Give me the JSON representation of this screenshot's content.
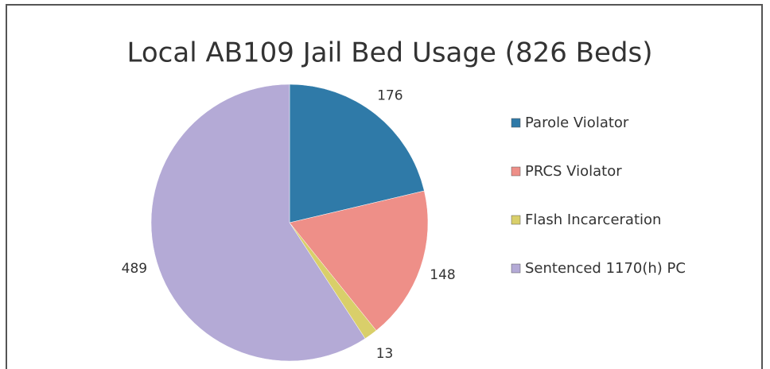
{
  "chart_data": {
    "type": "pie",
    "title": "Local AB109 Jail Bed Usage (826 Beds)",
    "categories": [
      "Parole Violator",
      "PRCS Violator",
      "Flash Incarceration",
      "Sentenced 1170(h) PC"
    ],
    "values": [
      176,
      148,
      13,
      489
    ],
    "colors": [
      "#2f7aa8",
      "#ee8f88",
      "#d9cf6a",
      "#b4aad6"
    ],
    "legend": "right"
  }
}
